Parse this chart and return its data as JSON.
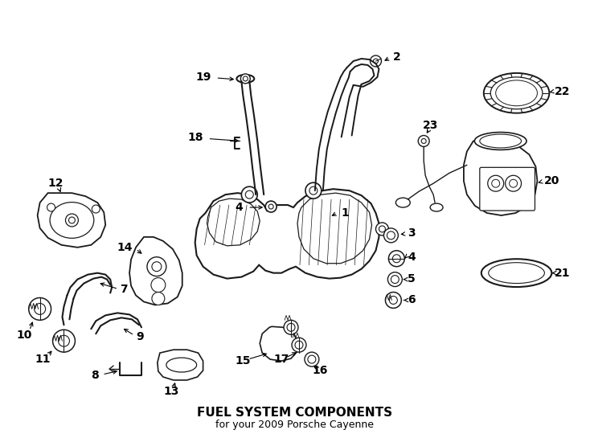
{
  "title": "FUEL SYSTEM COMPONENTS",
  "subtitle": "for your 2009 Porsche Cayenne",
  "bg_color": "#ffffff",
  "line_color": "#1a1a1a",
  "figsize": [
    7.34,
    5.4
  ],
  "dpi": 100,
  "label_fontsize": 10,
  "label_fontweight": "bold"
}
